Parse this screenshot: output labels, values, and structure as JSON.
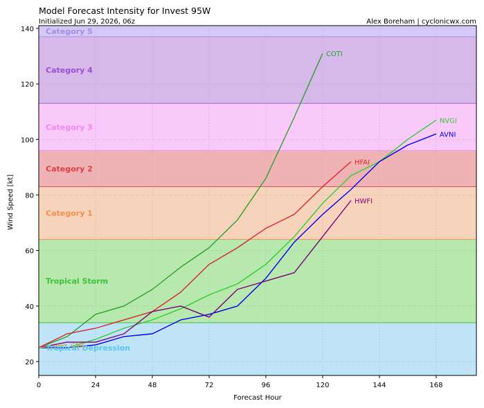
{
  "chart_data": {
    "type": "line",
    "title": "Model Forecast Intensity for Invest 95W",
    "subtitle": "Initialized Jun 29, 2026, 06z",
    "credit": "Alex Boreham | cyclonicwx.com",
    "xlabel": "Forecast Hour",
    "ylabel": "Wind Speed [kt]",
    "xlim": [
      0,
      185
    ],
    "ylim": [
      15,
      141
    ],
    "xticks": [
      0,
      24,
      48,
      72,
      96,
      120,
      144,
      168
    ],
    "yticks": [
      20,
      40,
      60,
      80,
      100,
      120,
      140
    ],
    "grid": true,
    "bands": [
      {
        "name": "Tropical Depression",
        "from": 15,
        "to": 34,
        "fill": "#bfe3f7",
        "edge": "#5fc2ea",
        "text": "#5bc4ee"
      },
      {
        "name": "Tropical Storm",
        "from": 34,
        "to": 64,
        "fill": "#b7e8ad",
        "edge": "#48c040",
        "text": "#3cc03a"
      },
      {
        "name": "Category 1",
        "from": 64,
        "to": 83,
        "fill": "#f7d3bb",
        "edge": "#e59a55",
        "text": "#f08f50"
      },
      {
        "name": "Category 2",
        "from": 83,
        "to": 96,
        "fill": "#efb3b5",
        "edge": "#e0505a",
        "text": "#dd3c40"
      },
      {
        "name": "Category 3",
        "from": 96,
        "to": 113,
        "fill": "#f9c9f9",
        "edge": "#e38fe6",
        "text": "#ee88ee"
      },
      {
        "name": "Category 4",
        "from": 113,
        "to": 137,
        "fill": "#d6b9ea",
        "edge": "#a368d2",
        "text": "#9a4fd0"
      },
      {
        "name": "Category 5",
        "from": 137,
        "to": 141,
        "fill": "#d6c9f7",
        "edge": "#a78fe6",
        "text": "#a58ae8"
      }
    ],
    "series": [
      {
        "name": "COTI",
        "color": "#2ca02c",
        "x": [
          0,
          12,
          24,
          36,
          48,
          60,
          72,
          84,
          96,
          108,
          120
        ],
        "y": [
          25,
          29,
          37,
          40,
          46,
          54,
          61,
          71,
          86,
          108,
          131
        ]
      },
      {
        "name": "NVGI",
        "color": "#33cc33",
        "x": [
          0,
          12,
          24,
          36,
          48,
          60,
          72,
          84,
          96,
          108,
          120,
          132,
          144,
          156,
          168
        ],
        "y": [
          25,
          25,
          28,
          32,
          35,
          39,
          44,
          48,
          55,
          65,
          77,
          87,
          92,
          100,
          107
        ]
      },
      {
        "name": "AVNI",
        "color": "#0000ee",
        "x": [
          0,
          12,
          24,
          36,
          48,
          60,
          72,
          84,
          96,
          108,
          120,
          132,
          144,
          156,
          168
        ],
        "y": [
          25,
          25,
          26,
          29,
          30,
          35,
          37,
          40,
          50,
          63,
          73,
          82,
          92,
          98,
          102
        ]
      },
      {
        "name": "HFAI",
        "color": "#d62728",
        "x": [
          0,
          12,
          24,
          36,
          48,
          60,
          72,
          84,
          96,
          108,
          120,
          132
        ],
        "y": [
          25,
          30,
          32,
          35,
          38,
          45,
          55,
          61,
          68,
          73,
          83,
          92
        ]
      },
      {
        "name": "HWFI",
        "color": "#7a007a",
        "x": [
          0,
          12,
          24,
          36,
          48,
          60,
          72,
          84,
          96,
          108,
          120,
          132
        ],
        "y": [
          25,
          27,
          27,
          30,
          38,
          40,
          36,
          46,
          49,
          52,
          65,
          78
        ]
      },
      {
        "name": "CMC",
        "color": "#d4a23a",
        "x": [
          0,
          12
        ],
        "y": [
          25,
          26
        ]
      }
    ]
  }
}
